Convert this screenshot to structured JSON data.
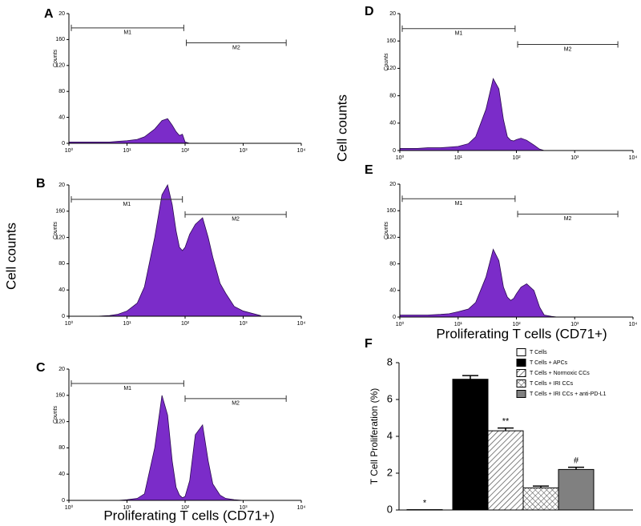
{
  "chart_data": [
    {
      "type": "area",
      "panel": "A",
      "color": "#7b2cc9",
      "xscale": "log",
      "x": [
        1,
        2,
        3,
        5,
        7,
        10,
        15,
        20,
        30,
        40,
        50,
        60,
        70,
        80,
        90,
        100,
        120,
        150,
        200,
        250,
        300,
        400,
        500,
        700,
        1000,
        2000
      ],
      "values": [
        2,
        2,
        2,
        2,
        3,
        4,
        6,
        10,
        22,
        35,
        38,
        28,
        18,
        12,
        14,
        2,
        0,
        0,
        0,
        0,
        0,
        0,
        0,
        0,
        0,
        0
      ],
      "xlim": [
        1,
        10000
      ],
      "xticks": [
        {
          "value": 1,
          "label": "10⁰"
        },
        {
          "value": 10,
          "label": "10¹"
        },
        {
          "value": 100,
          "label": "10²"
        },
        {
          "value": 1000,
          "label": "10³"
        },
        {
          "value": 10000,
          "label": "10⁴"
        }
      ],
      "ylim": [
        0,
        200
      ],
      "yticks": [
        0,
        40,
        80,
        120,
        160,
        {
          "value": 200,
          "label": "20"
        }
      ],
      "ylabel": "Counts",
      "gates": [
        {
          "label": "M1",
          "range": [
            1.1,
            95
          ],
          "y": 178
        },
        {
          "label": "M2",
          "range": [
            105,
            5500
          ],
          "y": 155
        }
      ]
    },
    {
      "type": "area",
      "panel": "B",
      "color": "#7b2cc9",
      "xscale": "log",
      "x": [
        1,
        2,
        3,
        5,
        7,
        10,
        15,
        20,
        30,
        40,
        50,
        60,
        70,
        80,
        90,
        100,
        120,
        150,
        200,
        250,
        300,
        400,
        500,
        700,
        1000,
        2000
      ],
      "values": [
        0,
        0,
        0,
        1,
        3,
        8,
        20,
        45,
        120,
        185,
        200,
        170,
        130,
        105,
        100,
        105,
        125,
        140,
        150,
        120,
        90,
        50,
        35,
        15,
        8,
        1
      ],
      "xlim": [
        1,
        10000
      ],
      "xticks": [
        {
          "value": 1,
          "label": "10⁰"
        },
        {
          "value": 10,
          "label": "10¹"
        },
        {
          "value": 100,
          "label": "10²"
        },
        {
          "value": 1000,
          "label": "10³"
        },
        {
          "value": 10000,
          "label": "10⁴"
        }
      ],
      "ylim": [
        0,
        200
      ],
      "yticks": [
        0,
        40,
        80,
        120,
        160,
        {
          "value": 200,
          "label": "20"
        }
      ],
      "ylabel": "Counts",
      "outer_ylabel": "Cell counts",
      "gates": [
        {
          "label": "M1",
          "range": [
            1.1,
            90
          ],
          "y": 178
        },
        {
          "label": "M2",
          "range": [
            100,
            5500
          ],
          "y": 155
        }
      ]
    },
    {
      "type": "area",
      "panel": "C",
      "color": "#7b2cc9",
      "xscale": "log",
      "x": [
        1,
        2,
        3,
        5,
        7,
        10,
        15,
        20,
        30,
        40,
        50,
        60,
        70,
        80,
        90,
        100,
        120,
        150,
        200,
        250,
        300,
        400,
        500,
        700,
        1000,
        2000
      ],
      "values": [
        0,
        0,
        0,
        0,
        0,
        1,
        3,
        10,
        80,
        160,
        130,
        60,
        20,
        8,
        4,
        6,
        30,
        100,
        115,
        60,
        25,
        8,
        3,
        1,
        0,
        0
      ],
      "xlim": [
        1,
        10000
      ],
      "xticks": [
        {
          "value": 1,
          "label": "10⁰"
        },
        {
          "value": 10,
          "label": "10¹"
        },
        {
          "value": 100,
          "label": "10²"
        },
        {
          "value": 1000,
          "label": "10³"
        },
        {
          "value": 10000,
          "label": "10⁴"
        }
      ],
      "ylim": [
        0,
        200
      ],
      "yticks": [
        0,
        40,
        80,
        120,
        160,
        {
          "value": 200,
          "label": "20"
        }
      ],
      "ylabel": "Counts",
      "xlabel": "Proliferating T cells (CD71+)",
      "gates": [
        {
          "label": "M1",
          "range": [
            1.1,
            95
          ],
          "y": 178
        },
        {
          "label": "M2",
          "range": [
            100,
            5500
          ],
          "y": 155
        }
      ]
    },
    {
      "type": "area",
      "panel": "D",
      "color": "#7b2cc9",
      "xscale": "log",
      "x": [
        1,
        2,
        3,
        5,
        7,
        10,
        15,
        20,
        30,
        40,
        50,
        60,
        70,
        80,
        90,
        100,
        120,
        150,
        200,
        250,
        300,
        400,
        500,
        700,
        1000,
        2000
      ],
      "values": [
        3,
        3,
        4,
        4,
        5,
        6,
        10,
        20,
        60,
        105,
        90,
        45,
        20,
        15,
        14,
        16,
        18,
        15,
        8,
        2,
        0,
        0,
        0,
        0,
        0,
        0
      ],
      "xlim": [
        1,
        10000
      ],
      "xticks": [
        {
          "value": 1,
          "label": "10⁰"
        },
        {
          "value": 10,
          "label": "10¹"
        },
        {
          "value": 100,
          "label": "10²"
        },
        {
          "value": 1000,
          "label": "10³"
        },
        {
          "value": 10000,
          "label": "10⁴"
        }
      ],
      "ylim": [
        0,
        200
      ],
      "yticks": [
        0,
        40,
        80,
        120,
        160,
        {
          "value": 200,
          "label": "20"
        }
      ],
      "ylabel": "Counts",
      "outer_ylabel": "Cell counts",
      "gates": [
        {
          "label": "M1",
          "range": [
            1.1,
            95
          ],
          "y": 178
        },
        {
          "label": "M2",
          "range": [
            105,
            5500
          ],
          "y": 155
        }
      ]
    },
    {
      "type": "area",
      "panel": "E",
      "color": "#7b2cc9",
      "xscale": "log",
      "x": [
        1,
        2,
        3,
        5,
        7,
        10,
        15,
        20,
        30,
        40,
        50,
        60,
        70,
        80,
        90,
        100,
        120,
        150,
        200,
        250,
        300,
        400,
        500,
        700,
        1000,
        2000
      ],
      "values": [
        3,
        3,
        3,
        4,
        5,
        8,
        12,
        22,
        60,
        102,
        85,
        45,
        30,
        25,
        28,
        35,
        45,
        50,
        40,
        15,
        3,
        1,
        0,
        0,
        0,
        0
      ],
      "xlim": [
        1,
        10000
      ],
      "xticks": [
        {
          "value": 1,
          "label": "10⁰"
        },
        {
          "value": 10,
          "label": "10¹"
        },
        {
          "value": 100,
          "label": "10²"
        },
        {
          "value": 1000,
          "label": "10³"
        },
        {
          "value": 10000,
          "label": "10⁴"
        }
      ],
      "ylim": [
        0,
        200
      ],
      "yticks": [
        0,
        40,
        80,
        120,
        160,
        {
          "value": 200,
          "label": "20"
        }
      ],
      "ylabel": "Counts",
      "xlabel": "Proliferating T cells (CD71+)",
      "gates": [
        {
          "label": "M1",
          "range": [
            1.1,
            95
          ],
          "y": 178
        },
        {
          "label": "M2",
          "range": [
            105,
            5500
          ],
          "y": 155
        }
      ]
    },
    {
      "type": "bar",
      "panel": "F",
      "ylabel": "T Cell Proliferation (%)",
      "ylim": [
        0,
        8
      ],
      "yticks": [
        0,
        2,
        4,
        6,
        8
      ],
      "legend": "top-right",
      "series": [
        {
          "name": "T Cells",
          "color": "#ffffff",
          "pattern": "solid",
          "values": [
            0.02
          ],
          "annotation": "*"
        },
        {
          "name": "T Cells + APCs",
          "color": "#000000",
          "pattern": "solid",
          "values": [
            7.1
          ],
          "errors": [
            0.2
          ]
        },
        {
          "name": "T Cells + Normoxic CCs",
          "color": "#ffffff",
          "pattern": "hatch",
          "values": [
            4.3
          ],
          "errors": [
            0.15
          ],
          "annotation": "**"
        },
        {
          "name": "T Cells + IRI CCs",
          "color": "#ffffff",
          "pattern": "crosshatch",
          "values": [
            1.2
          ],
          "errors": [
            0.1
          ]
        },
        {
          "name": "T Cells + IRI CCs + anti-PD-L1",
          "color": "#808080",
          "pattern": "solid",
          "values": [
            2.2
          ],
          "errors": [
            0.12
          ],
          "annotation": "#"
        }
      ]
    }
  ]
}
